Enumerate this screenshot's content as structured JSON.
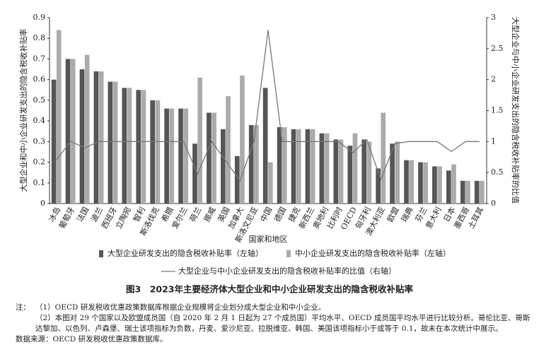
{
  "chart_data": {
    "type": "bar",
    "title": "图3　2023年主要经济体大型企业和中小企业研发支出的隐含税收补贴率",
    "x_label": "国家和地区",
    "y_label": "大型企业和中小企业研发支出的隐含税收补贴率",
    "y2_label": "大型企业与中小企业研发支出的隐含税收补贴率的比值",
    "categories": [
      "冰岛",
      "葡萄牙",
      "法国",
      "波兰",
      "西班牙",
      "立陶宛",
      "智利",
      "斯洛伐克",
      "希腊",
      "爱尔兰",
      "荷兰",
      "挪威",
      "英国",
      "加拿大",
      "斯洛文尼亚",
      "中国",
      "德国",
      "捷克",
      "新西兰",
      "奥地利",
      "比利时",
      "OECD",
      "匈牙利",
      "澳大利亚",
      "欧盟",
      "瑞典",
      "芬兰",
      "意大利",
      "日本",
      "墨西哥",
      "土耳其"
    ],
    "series": [
      {
        "name": "大型企业研发支出的隐含税收补贴率（左轴）",
        "color": "#555555",
        "type": "bar",
        "values": [
          0.6,
          0.7,
          0.65,
          0.64,
          0.59,
          0.56,
          0.55,
          0.5,
          0.46,
          0.46,
          0.29,
          0.44,
          0.36,
          0.23,
          0.38,
          0.56,
          0.37,
          0.36,
          0.36,
          0.34,
          0.31,
          0.28,
          0.31,
          0.17,
          0.29,
          0.21,
          0.2,
          0.18,
          0.16,
          0.11,
          0.11
        ]
      },
      {
        "name": "中小企业研发支出的隐含税收补贴率（左轴）",
        "color": "#ababab",
        "type": "bar",
        "values": [
          0.84,
          0.7,
          0.72,
          0.64,
          0.59,
          0.56,
          0.55,
          0.5,
          0.46,
          0.46,
          0.61,
          0.44,
          0.52,
          0.62,
          0.38,
          0.2,
          0.37,
          0.36,
          0.36,
          0.34,
          0.31,
          0.34,
          0.3,
          0.44,
          0.3,
          0.21,
          0.2,
          0.18,
          0.19,
          0.11,
          0.11
        ]
      },
      {
        "name": "大型企业与中小企业研发支出的隐含税收补贴率的比值（右轴）",
        "color": "#777777",
        "type": "line",
        "axis": "y2",
        "values": [
          0.71,
          1,
          0.9,
          1,
          1,
          1,
          1,
          1,
          1,
          1,
          0.48,
          1,
          0.69,
          0.37,
          1,
          2.8,
          1,
          1,
          1,
          1,
          1,
          0.82,
          1.03,
          0.39,
          0.97,
          1,
          1,
          1,
          0.84,
          1,
          1
        ]
      }
    ],
    "ylim": [
      0,
      0.9
    ],
    "yticks": [
      0,
      0.1,
      0.2,
      0.3,
      0.4,
      0.5,
      0.6,
      0.7,
      0.8,
      0.9
    ],
    "y2lim": [
      0,
      3
    ],
    "y2ticks": [
      0,
      0.5,
      1,
      1.5,
      2,
      2.5,
      3
    ],
    "grid": false
  },
  "notes": {
    "label": "注：",
    "items": [
      "（1）OECD 研发税收优惠政策数据库根据企业规模将企业划分成大型企业和中小企业。",
      "（2）本图对 29 个国家以及欧盟成员国（自 2020 年 2 月 1 日起为 27 个成员国）平均水平、OECD 成员国平均水平进行比较分析。哥伦比亚、哥斯达黎加、以色列、卢森堡、瑞士该项指标为负数，丹麦、爱沙尼亚、拉脱维亚、韩国、美国该项指标小于或等于 0.1，故未在本次统计中展示。"
    ]
  },
  "source": "数据来源：OECD 研发税收优惠政策数据库。"
}
